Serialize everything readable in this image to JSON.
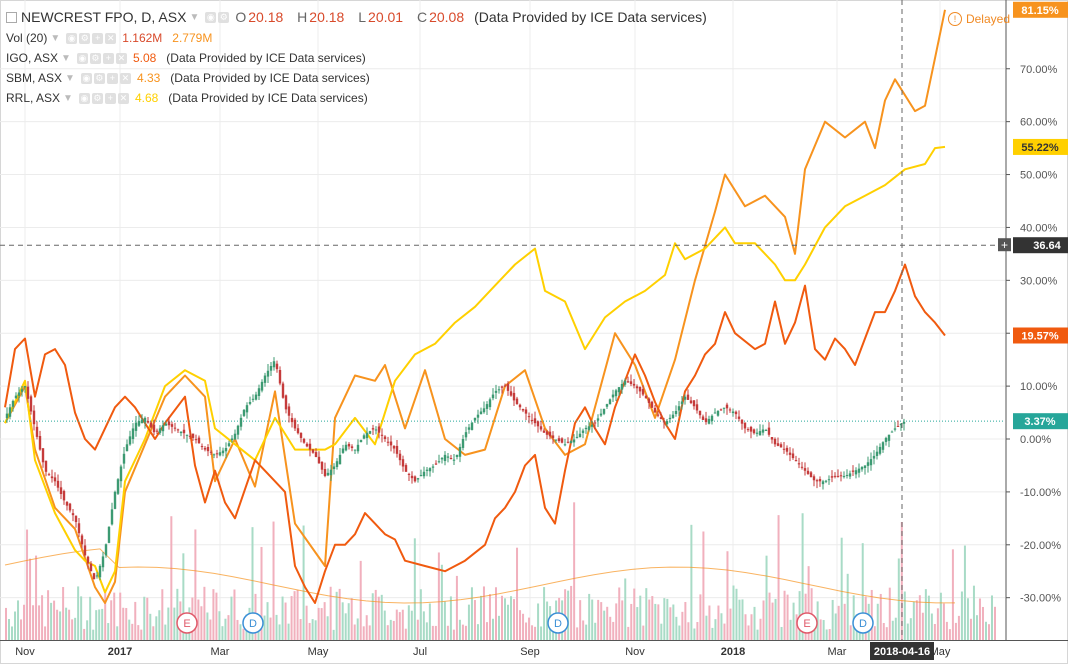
{
  "header": {
    "symbol": "NEWCREST FPO, D, ASX",
    "o_label": "O",
    "o": "20.18",
    "h_label": "H",
    "h": "20.18",
    "l_label": "L",
    "l": "20.01",
    "c_label": "C",
    "c": "20.08",
    "source": "(Data Provided by ICE Data services)",
    "delayed": "Delayed"
  },
  "legend": {
    "vol": {
      "label": "Vol (20)",
      "v1": "1.162M",
      "v2": "2.779M"
    },
    "comparisons": [
      {
        "label": "IGO, ASX",
        "value": "5.08",
        "source": "(Data Provided by ICE Data services)",
        "color": "#f05a0f"
      },
      {
        "label": "SBM, ASX",
        "value": "4.33",
        "source": "(Data Provided by ICE Data services)",
        "color": "#f7931e"
      },
      {
        "label": "RRL, ASX",
        "value": "4.68",
        "source": "(Data Provided by ICE Data services)",
        "color": "#ffd000"
      }
    ]
  },
  "colors": {
    "IGO": "#f05a0f",
    "SBM": "#f7931e",
    "RRL": "#ffd000",
    "NCM": "#26a69a",
    "up": "#3c9a72",
    "down": "#c53b3b",
    "vol_up": "#a8dbc6",
    "vol_down": "#f1b0bd"
  },
  "chart_data": {
    "type": "line",
    "y_unit": "%",
    "ylim": [
      -38,
      83
    ],
    "yticks": [
      "70.00%",
      "60.00%",
      "50.00%",
      "40.00%",
      "30.00%",
      "20.00%",
      "10.00%",
      "0.00%",
      "-10.00%",
      "-20.00%",
      "-30.00%"
    ],
    "ytick_values": [
      70,
      60,
      50,
      40,
      30,
      20,
      10,
      0,
      -10,
      -20,
      -30
    ],
    "xticks": [
      "Nov",
      "2017",
      "Mar",
      "May",
      "Jul",
      "Sep",
      "Nov",
      "2018",
      "Mar",
      "May"
    ],
    "xlim": [
      0,
      100
    ],
    "xtick_positions": [
      2,
      11.5,
      21.5,
      31.3,
      41.5,
      52.5,
      63,
      72.8,
      83.2,
      93.5
    ],
    "crosshair": {
      "x_label": "2018-04-16",
      "x": 89.7,
      "y_value": "36.64",
      "y": 36.64
    },
    "last_labels": [
      {
        "series": "SBM",
        "label": "81.15%",
        "value": 81.15
      },
      {
        "series": "RRL",
        "label": "55.22%",
        "value": 55.22
      },
      {
        "series": "IGO",
        "label": "19.57%",
        "value": 19.57
      },
      {
        "series": "NCM",
        "label": "3.37%",
        "value": 3.37
      }
    ],
    "events": [
      {
        "label": "E",
        "x": 18.2
      },
      {
        "label": "D",
        "x": 24.8
      },
      {
        "label": "D",
        "x": 55.3
      },
      {
        "label": "E",
        "x": 80.2
      },
      {
        "label": "D",
        "x": 85.8
      }
    ],
    "series": [
      {
        "name": "SBM",
        "points": [
          [
            0,
            3
          ],
          [
            2,
            10
          ],
          [
            3,
            -2
          ],
          [
            5,
            -13
          ],
          [
            7,
            -17
          ],
          [
            9,
            -28
          ],
          [
            10,
            -31
          ],
          [
            11,
            -27
          ],
          [
            12,
            -10
          ],
          [
            14,
            -1
          ],
          [
            16,
            8
          ],
          [
            18,
            12
          ],
          [
            20,
            8
          ],
          [
            21,
            -8
          ],
          [
            23,
            0
          ],
          [
            25,
            -9
          ],
          [
            27,
            9
          ],
          [
            29,
            -16
          ],
          [
            32,
            -24
          ],
          [
            33,
            4
          ],
          [
            35,
            12
          ],
          [
            37,
            11
          ],
          [
            38,
            14
          ],
          [
            40,
            2
          ],
          [
            42,
            13
          ],
          [
            44,
            0
          ],
          [
            46,
            -3
          ],
          [
            48,
            -2
          ],
          [
            50,
            10
          ],
          [
            52,
            13
          ],
          [
            54,
            2
          ],
          [
            56,
            -3
          ],
          [
            58,
            -1
          ],
          [
            60,
            13
          ],
          [
            61,
            20
          ],
          [
            63,
            14
          ],
          [
            65,
            4
          ],
          [
            67,
            15
          ],
          [
            69,
            30
          ],
          [
            71,
            43
          ],
          [
            72,
            50
          ],
          [
            74,
            44
          ],
          [
            76,
            46
          ],
          [
            78,
            42
          ],
          [
            79,
            35
          ],
          [
            80,
            51
          ],
          [
            82,
            60
          ],
          [
            84,
            57
          ],
          [
            86,
            60
          ],
          [
            87,
            55
          ],
          [
            88,
            64
          ],
          [
            89,
            68
          ],
          [
            91,
            62
          ],
          [
            92,
            63
          ],
          [
            93,
            72
          ],
          [
            94,
            81.15
          ]
        ]
      },
      {
        "name": "RRL",
        "points": [
          [
            0,
            3
          ],
          [
            2,
            11
          ],
          [
            3,
            -4
          ],
          [
            5,
            -14
          ],
          [
            7,
            -21
          ],
          [
            8,
            -23
          ],
          [
            9,
            -24
          ],
          [
            10,
            -29
          ],
          [
            11,
            -25
          ],
          [
            12,
            -8
          ],
          [
            14,
            0
          ],
          [
            16,
            10
          ],
          [
            18,
            13
          ],
          [
            20,
            11
          ],
          [
            21,
            2
          ],
          [
            23,
            -1
          ],
          [
            25,
            -4
          ],
          [
            27,
            4
          ],
          [
            29,
            -2
          ],
          [
            32,
            -2
          ],
          [
            33,
            -1
          ],
          [
            35,
            4
          ],
          [
            37,
            -1
          ],
          [
            39,
            11
          ],
          [
            41,
            16
          ],
          [
            43,
            18
          ],
          [
            45,
            22
          ],
          [
            47,
            25
          ],
          [
            49,
            29
          ],
          [
            51,
            33
          ],
          [
            53,
            36
          ],
          [
            54,
            28
          ],
          [
            56,
            26
          ],
          [
            58,
            17
          ],
          [
            60,
            23
          ],
          [
            62,
            26
          ],
          [
            64,
            28
          ],
          [
            66,
            31
          ],
          [
            67,
            37
          ],
          [
            68,
            34
          ],
          [
            70,
            36
          ],
          [
            72,
            40
          ],
          [
            73,
            37
          ],
          [
            75,
            37
          ],
          [
            77,
            33
          ],
          [
            78,
            30
          ],
          [
            79,
            30
          ],
          [
            80,
            33
          ],
          [
            82,
            40
          ],
          [
            84,
            44
          ],
          [
            86,
            46
          ],
          [
            88,
            48
          ],
          [
            90,
            51
          ],
          [
            92,
            52
          ],
          [
            93,
            55
          ],
          [
            94,
            55.22
          ]
        ]
      },
      {
        "name": "IGO",
        "points": [
          [
            0,
            6
          ],
          [
            1,
            17
          ],
          [
            2,
            19
          ],
          [
            3,
            8
          ],
          [
            4,
            16
          ],
          [
            5,
            17
          ],
          [
            6,
            14
          ],
          [
            7,
            5
          ],
          [
            8,
            0
          ],
          [
            9,
            -2
          ],
          [
            10,
            2
          ],
          [
            11,
            6
          ],
          [
            12,
            8
          ],
          [
            13,
            6
          ],
          [
            14,
            3
          ],
          [
            15,
            0
          ],
          [
            16,
            3
          ],
          [
            18,
            8
          ],
          [
            19,
            -5
          ],
          [
            20,
            -12
          ],
          [
            21,
            -6
          ],
          [
            22,
            -12
          ],
          [
            23,
            -15
          ],
          [
            25,
            -4
          ],
          [
            27,
            -8
          ],
          [
            28,
            -10
          ],
          [
            29,
            -24
          ],
          [
            30,
            -28
          ],
          [
            31,
            -31
          ],
          [
            32,
            -25
          ],
          [
            33,
            -20
          ],
          [
            34,
            -20
          ],
          [
            35,
            -18
          ],
          [
            36,
            -14
          ],
          [
            37,
            -16
          ],
          [
            38,
            -18
          ],
          [
            39,
            -19
          ],
          [
            40,
            -23
          ],
          [
            42,
            -24
          ],
          [
            44,
            -25
          ],
          [
            46,
            -23
          ],
          [
            48,
            -20
          ],
          [
            49,
            -15
          ],
          [
            50,
            -13
          ],
          [
            51,
            -10
          ],
          [
            52,
            -5
          ],
          [
            53,
            -3
          ],
          [
            54,
            -13
          ],
          [
            55,
            -16
          ],
          [
            56,
            -6
          ],
          [
            57,
            3
          ],
          [
            58,
            6
          ],
          [
            59,
            2
          ],
          [
            60,
            -1
          ],
          [
            61,
            6
          ],
          [
            62,
            11
          ],
          [
            63,
            16
          ],
          [
            64,
            12
          ],
          [
            65,
            7
          ],
          [
            66,
            3
          ],
          [
            67,
            0
          ],
          [
            68,
            9
          ],
          [
            69,
            12
          ],
          [
            70,
            16
          ],
          [
            71,
            18
          ],
          [
            72,
            24
          ],
          [
            73,
            20
          ],
          [
            75,
            17
          ],
          [
            76,
            18
          ],
          [
            77,
            26
          ],
          [
            78,
            18
          ],
          [
            79,
            22
          ],
          [
            80,
            29
          ],
          [
            81,
            17
          ],
          [
            82,
            15
          ],
          [
            83,
            19
          ],
          [
            84,
            17
          ],
          [
            85,
            14
          ],
          [
            86,
            19
          ],
          [
            87,
            24
          ],
          [
            88,
            24
          ],
          [
            89,
            28
          ],
          [
            90,
            33
          ],
          [
            91,
            27
          ],
          [
            92,
            24
          ],
          [
            93,
            22
          ],
          [
            94,
            19.57
          ]
        ]
      },
      {
        "name": "NCM",
        "points": [
          [
            0,
            4
          ],
          [
            1,
            8
          ],
          [
            2,
            10
          ],
          [
            3,
            2
          ],
          [
            4,
            -6
          ],
          [
            5,
            -8
          ],
          [
            6,
            -12
          ],
          [
            7,
            -15
          ],
          [
            8,
            -22
          ],
          [
            9,
            -27
          ],
          [
            10,
            -21
          ],
          [
            11,
            -10
          ],
          [
            12,
            -2
          ],
          [
            13,
            3
          ],
          [
            14,
            4
          ],
          [
            15,
            1
          ],
          [
            16,
            3
          ],
          [
            18,
            1
          ],
          [
            19,
            0
          ],
          [
            20,
            -2
          ],
          [
            21,
            -3
          ],
          [
            22,
            -2
          ],
          [
            23,
            1
          ],
          [
            24,
            6
          ],
          [
            25,
            8
          ],
          [
            26,
            12
          ],
          [
            27,
            15
          ],
          [
            28,
            6
          ],
          [
            29,
            2
          ],
          [
            30,
            -1
          ],
          [
            31,
            -3
          ],
          [
            32,
            -7
          ],
          [
            33,
            -5
          ],
          [
            34,
            -1
          ],
          [
            35,
            -2
          ],
          [
            36,
            1
          ],
          [
            37,
            2
          ],
          [
            38,
            0
          ],
          [
            39,
            -2
          ],
          [
            40,
            -6
          ],
          [
            41,
            -8
          ],
          [
            42,
            -6
          ],
          [
            43,
            -5
          ],
          [
            44,
            -3
          ],
          [
            45,
            -4
          ],
          [
            46,
            1
          ],
          [
            47,
            4
          ],
          [
            48,
            6
          ],
          [
            49,
            9
          ],
          [
            50,
            10
          ],
          [
            51,
            7
          ],
          [
            52,
            5
          ],
          [
            53,
            3
          ],
          [
            54,
            1
          ],
          [
            55,
            0
          ],
          [
            56,
            -1
          ],
          [
            57,
            0
          ],
          [
            58,
            2
          ],
          [
            59,
            3
          ],
          [
            60,
            6
          ],
          [
            61,
            9
          ],
          [
            62,
            11
          ],
          [
            63,
            10
          ],
          [
            64,
            8
          ],
          [
            65,
            5
          ],
          [
            66,
            3
          ],
          [
            67,
            5
          ],
          [
            68,
            8
          ],
          [
            69,
            6
          ],
          [
            70,
            3
          ],
          [
            71,
            5
          ],
          [
            72,
            6
          ],
          [
            73,
            5
          ],
          [
            74,
            2
          ],
          [
            75,
            1
          ],
          [
            76,
            2
          ],
          [
            77,
            -1
          ],
          [
            78,
            -2
          ],
          [
            79,
            -4
          ],
          [
            80,
            -6
          ],
          [
            81,
            -8
          ],
          [
            82,
            -8
          ],
          [
            83,
            -7
          ],
          [
            84,
            -7
          ],
          [
            85,
            -6
          ],
          [
            86,
            -5
          ],
          [
            87,
            -3
          ],
          [
            88,
            0
          ],
          [
            89,
            2
          ],
          [
            90,
            3.37
          ]
        ]
      }
    ]
  },
  "toolbar": {
    "settings_icon": "gear-icon",
    "add_icon": "plus-icon",
    "close_icon": "close-icon",
    "eye_icon": "eye-icon"
  }
}
